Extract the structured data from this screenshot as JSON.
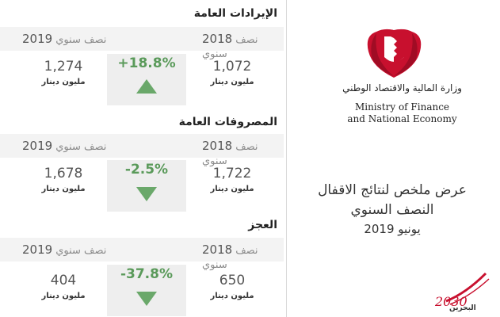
{
  "sections": [
    {
      "title": "الإيرادات العامة",
      "period_left": {
        "year": "2019",
        "word": "نصف سنوي"
      },
      "period_right": {
        "year": "2018",
        "word": "نصف سنوي"
      },
      "value_left": "1,274",
      "value_right": "1,072",
      "unit": "مليون دينار",
      "change": "+18.8%",
      "direction": "up"
    },
    {
      "title": "المصروفات العامة",
      "period_left": {
        "year": "2019",
        "word": "نصف سنوي"
      },
      "period_right": {
        "year": "2018",
        "word": "نصف سنوي"
      },
      "value_left": "1,678",
      "value_right": "1,722",
      "unit": "مليون دينار",
      "change": "-2.5%",
      "direction": "down"
    },
    {
      "title": "العجز",
      "period_left": {
        "year": "2019",
        "word": "نصف سنوي"
      },
      "period_right": {
        "year": "2018",
        "word": "نصف سنوي"
      },
      "value_left": "404",
      "value_right": "650",
      "unit": "مليون دينار",
      "change": "-37.8%",
      "direction": "down"
    }
  ],
  "ministry": {
    "arabic": "وزارة المالية والاقتصاد الوطني",
    "english_line1": "Ministry of Finance",
    "english_line2": "and National Economy"
  },
  "presentation": {
    "title_line1": "عرض ملخص لنتائج الاقفال",
    "title_line2": "النصف السنوي",
    "date": "يونيو 2019"
  },
  "vision_logo": {
    "number": "2030",
    "text": "البحرين"
  },
  "colors": {
    "accent_green": "#6aa86a",
    "emblem_red": "#c8102e"
  }
}
